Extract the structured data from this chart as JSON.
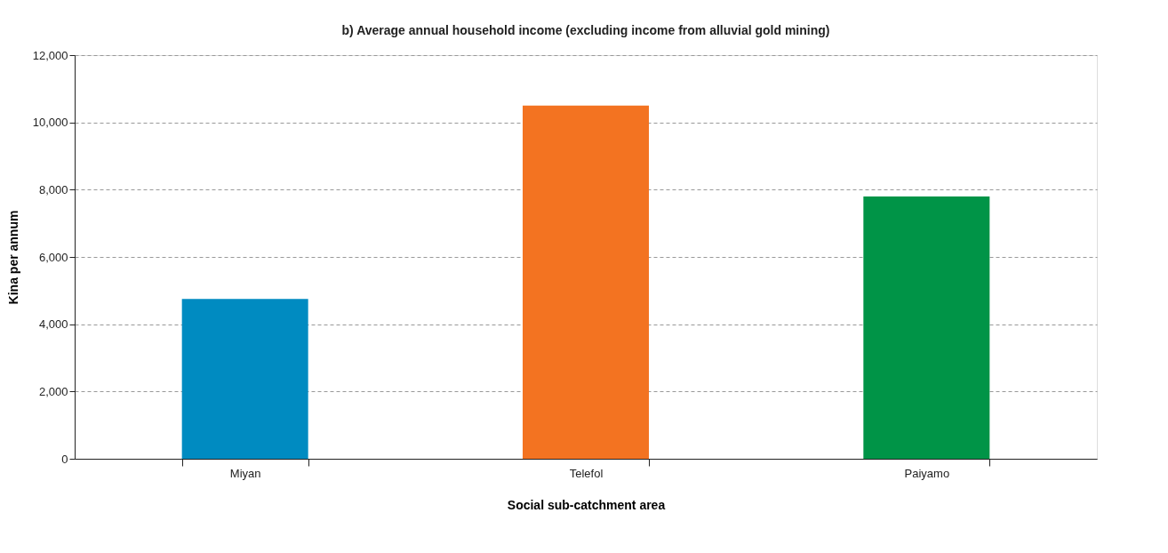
{
  "chart_data": {
    "type": "bar",
    "title": "b) Average annual household income (excluding income from alluvial gold mining)",
    "xlabel": "Social sub-catchment area",
    "ylabel": "Kina per annum",
    "categories": [
      "Miyan",
      "Telefol",
      "Paiyamo"
    ],
    "values": [
      4750,
      10500,
      7800
    ],
    "colors": [
      "#008bc1",
      "#f37321",
      "#009447"
    ],
    "ylim": [
      0,
      12000
    ],
    "yticks": [
      {
        "value": 0,
        "label": "0"
      },
      {
        "value": 2000,
        "label": "2,000"
      },
      {
        "value": 4000,
        "label": "4,000"
      },
      {
        "value": 6000,
        "label": "6,000"
      },
      {
        "value": 8000,
        "label": "8,000"
      },
      {
        "value": 10000,
        "label": "10,000"
      },
      {
        "value": 12000,
        "label": "12,000"
      }
    ],
    "grid": "y"
  }
}
